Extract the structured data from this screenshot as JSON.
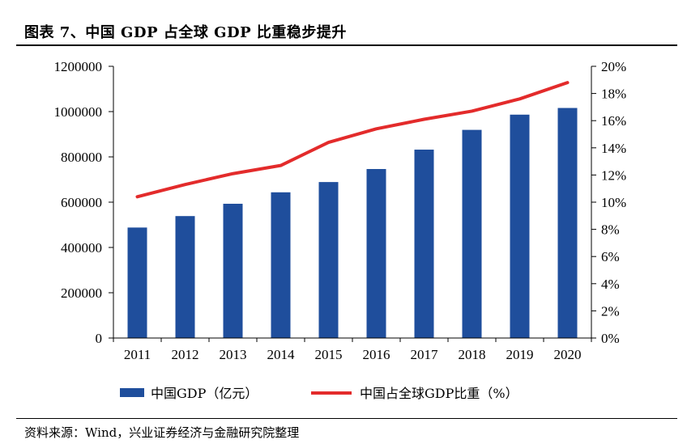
{
  "title": "图表 7、中国 GDP 占全球 GDP 比重稳步提升",
  "source": "资料来源：Wind，兴业证券经济与金融研究院整理",
  "colors": {
    "bar": "#1f4e9c",
    "line": "#e32b2b",
    "axis": "#000000"
  },
  "chart_data": {
    "type": "bar",
    "categories": [
      "2011",
      "2012",
      "2013",
      "2014",
      "2015",
      "2016",
      "2017",
      "2018",
      "2019",
      "2020"
    ],
    "series": [
      {
        "name": "中国GDP（亿元）",
        "type": "bar",
        "axis": "left",
        "values": [
          487940,
          538580,
          592963,
          643563,
          688858,
          746395,
          832036,
          919281,
          986515,
          1015986
        ]
      },
      {
        "name": "中国占全球GDP比重（%）",
        "type": "line",
        "axis": "right",
        "values": [
          10.4,
          11.3,
          12.1,
          12.7,
          14.4,
          15.4,
          16.1,
          16.7,
          17.6,
          18.8
        ]
      }
    ],
    "ylim_left": [
      0,
      1200000
    ],
    "yticks_left": [
      "0",
      "200000",
      "400000",
      "600000",
      "800000",
      "1000000",
      "1200000"
    ],
    "ylim_right": [
      0,
      20
    ],
    "yticks_right": [
      "0%",
      "2%",
      "4%",
      "6%",
      "8%",
      "10%",
      "12%",
      "14%",
      "16%",
      "18%",
      "20%"
    ],
    "grid": false,
    "legend_position": "bottom"
  }
}
